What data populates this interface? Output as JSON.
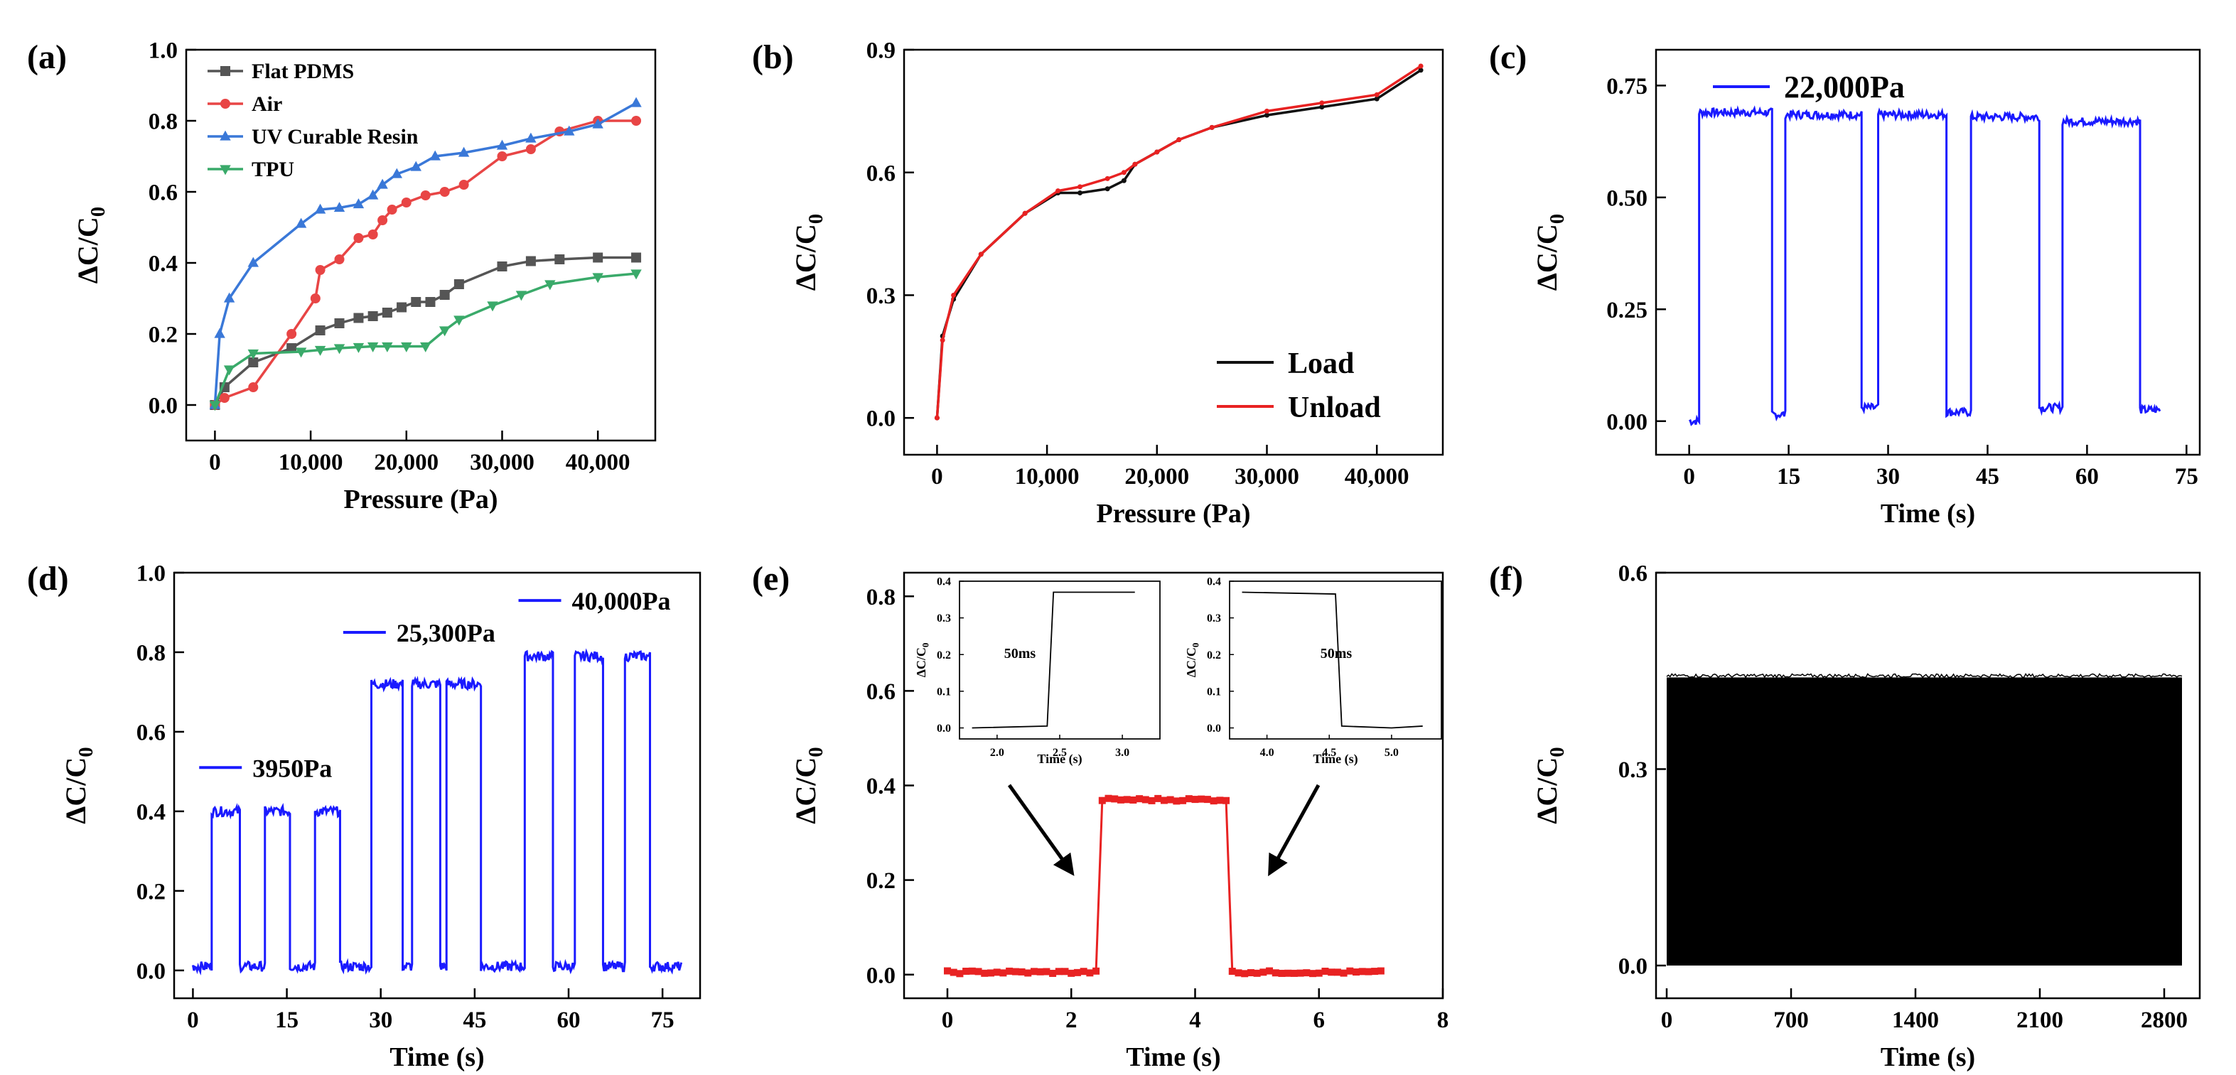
{
  "figure": {
    "panels": [
      {
        "label": "(a)",
        "xlabel": "Pressure (Pa)",
        "ylabel": "ΔC/C0"
      },
      {
        "label": "(b)",
        "xlabel": "Pressure (Pa)",
        "ylabel": "ΔC/C0"
      },
      {
        "label": "(c)",
        "xlabel": "Time (s)",
        "ylabel": "ΔC/C0"
      },
      {
        "label": "(d)",
        "xlabel": "Time (s)",
        "ylabel": "ΔC/C0"
      },
      {
        "label": "(e)",
        "xlabel": "Time (s)",
        "ylabel": "ΔC/C0"
      },
      {
        "label": "(f)",
        "xlabel": "Time (s)",
        "ylabel": "ΔC/C0"
      }
    ]
  },
  "chart_data": [
    {
      "id": "a",
      "type": "line",
      "xlabel": "Pressure (Pa)",
      "ylabel": "ΔC/C0",
      "xlim": [
        -3000,
        46000
      ],
      "ylim": [
        -0.1,
        1.0
      ],
      "xticks": [
        0,
        10000,
        20000,
        30000,
        40000
      ],
      "xticklabels": [
        "0",
        "10,000",
        "20,000",
        "30,000",
        "40,000"
      ],
      "yticks": [
        0.0,
        0.2,
        0.4,
        0.6,
        0.8,
        1.0
      ],
      "yticklabels": [
        "0.0",
        "0.2",
        "0.4",
        "0.6",
        "0.8",
        "1.0"
      ],
      "legend": "top-left",
      "series": [
        {
          "name": "Flat PDMS",
          "color": "#555555",
          "marker": "square",
          "x": [
            0,
            1000,
            4000,
            8000,
            11000,
            13000,
            15000,
            16500,
            18000,
            19500,
            21000,
            22500,
            24000,
            25500,
            30000,
            33000,
            36000,
            40000,
            44000
          ],
          "y": [
            0.0,
            0.05,
            0.12,
            0.16,
            0.21,
            0.23,
            0.245,
            0.25,
            0.26,
            0.275,
            0.29,
            0.29,
            0.31,
            0.34,
            0.39,
            0.405,
            0.41,
            0.415,
            0.415
          ]
        },
        {
          "name": "Air",
          "color": "#e84545",
          "marker": "circle",
          "x": [
            0,
            1000,
            4000,
            8000,
            10500,
            11000,
            13000,
            15000,
            16500,
            17500,
            18500,
            20000,
            22000,
            24000,
            26000,
            30000,
            33000,
            36000,
            40000,
            44000
          ],
          "y": [
            0.0,
            0.02,
            0.05,
            0.2,
            0.3,
            0.38,
            0.41,
            0.47,
            0.48,
            0.52,
            0.55,
            0.57,
            0.59,
            0.6,
            0.62,
            0.7,
            0.72,
            0.77,
            0.8,
            0.8
          ]
        },
        {
          "name": "UV Curable Resin",
          "color": "#3a78d8",
          "marker": "triangle-up",
          "x": [
            0,
            500,
            1500,
            4000,
            9000,
            11000,
            13000,
            15000,
            16500,
            17500,
            19000,
            21000,
            23000,
            26000,
            30000,
            33000,
            37000,
            40000,
            44000
          ],
          "y": [
            0.0,
            0.2,
            0.3,
            0.4,
            0.51,
            0.55,
            0.555,
            0.565,
            0.59,
            0.62,
            0.65,
            0.67,
            0.7,
            0.71,
            0.73,
            0.75,
            0.77,
            0.79,
            0.85
          ]
        },
        {
          "name": "TPU",
          "color": "#3aaa6a",
          "marker": "triangle-down",
          "x": [
            0,
            1500,
            4000,
            9000,
            11000,
            13000,
            15000,
            16500,
            18000,
            20000,
            22000,
            24000,
            25500,
            29000,
            32000,
            35000,
            40000,
            44000
          ],
          "y": [
            0.0,
            0.1,
            0.145,
            0.15,
            0.155,
            0.16,
            0.163,
            0.165,
            0.165,
            0.165,
            0.165,
            0.21,
            0.24,
            0.28,
            0.31,
            0.34,
            0.36,
            0.37
          ]
        }
      ]
    },
    {
      "id": "b",
      "type": "line",
      "xlabel": "Pressure (Pa)",
      "ylabel": "ΔC/C0",
      "xlim": [
        -3000,
        46000
      ],
      "ylim": [
        -0.09,
        0.9
      ],
      "xticks": [
        0,
        10000,
        20000,
        30000,
        40000
      ],
      "xticklabels": [
        "0",
        "10,000",
        "20,000",
        "30,000",
        "40,000"
      ],
      "yticks": [
        0.0,
        0.3,
        0.6,
        0.9
      ],
      "yticklabels": [
        "0.0",
        "0.3",
        "0.6",
        "0.9"
      ],
      "legend": "bottom-right",
      "series": [
        {
          "name": "Load",
          "color": "#111111",
          "x": [
            0,
            500,
            1500,
            4000,
            8000,
            11000,
            13000,
            15500,
            17000,
            18000,
            20000,
            22000,
            25000,
            30000,
            35000,
            40000,
            44000
          ],
          "y": [
            0.0,
            0.2,
            0.29,
            0.4,
            0.5,
            0.55,
            0.55,
            0.56,
            0.58,
            0.62,
            0.65,
            0.68,
            0.71,
            0.74,
            0.76,
            0.78,
            0.85
          ]
        },
        {
          "name": "Unload",
          "color": "#e82222",
          "x": [
            0,
            500,
            1500,
            4000,
            8000,
            11000,
            13000,
            15500,
            17000,
            18000,
            20000,
            22000,
            25000,
            30000,
            35000,
            40000,
            44000
          ],
          "y": [
            0.0,
            0.19,
            0.3,
            0.4,
            0.5,
            0.555,
            0.565,
            0.585,
            0.6,
            0.62,
            0.65,
            0.68,
            0.71,
            0.75,
            0.77,
            0.79,
            0.86
          ]
        }
      ]
    },
    {
      "id": "c",
      "type": "line",
      "xlabel": "Time (s)",
      "ylabel": "ΔC/C0",
      "xlim": [
        -5,
        77
      ],
      "ylim": [
        -0.075,
        0.83
      ],
      "xticks": [
        0,
        15,
        30,
        45,
        60,
        75
      ],
      "xticklabels": [
        "0",
        "15",
        "30",
        "45",
        "60",
        "75"
      ],
      "yticks": [
        0.0,
        0.25,
        0.5,
        0.75
      ],
      "yticklabels": [
        "0.00",
        "0.25",
        "0.50",
        "0.75"
      ],
      "legend": "top-left",
      "series": [
        {
          "name": "22,000Pa",
          "color": "#1a1aff",
          "pulses": [
            [
              1.5,
              12.5,
              0.69
            ],
            [
              14.5,
              26.0,
              0.685
            ],
            [
              28.5,
              38.8,
              0.685
            ],
            [
              42.5,
              52.8,
              0.68
            ],
            [
              56.3,
              68.0,
              0.67
            ]
          ],
          "baselines": [
            [
              0,
              1.5,
              0.0
            ],
            [
              12.5,
              14.5,
              0.015
            ],
            [
              26.0,
              28.5,
              0.03
            ],
            [
              38.8,
              42.5,
              0.02
            ],
            [
              52.8,
              56.3,
              0.03
            ],
            [
              68.0,
              71.0,
              0.025
            ]
          ]
        }
      ]
    },
    {
      "id": "d",
      "type": "line",
      "xlabel": "Time (s)",
      "ylabel": "ΔC/C0",
      "xlim": [
        -3,
        81
      ],
      "ylim": [
        -0.07,
        1.0
      ],
      "xticks": [
        0,
        15,
        30,
        45,
        60,
        75
      ],
      "xticklabels": [
        "0",
        "15",
        "30",
        "45",
        "60",
        "75"
      ],
      "yticks": [
        0.0,
        0.2,
        0.4,
        0.6,
        0.8,
        1.0
      ],
      "yticklabels": [
        "0.0",
        "0.2",
        "0.4",
        "0.6",
        "0.8",
        "1.0"
      ],
      "legend": "inline",
      "series": [
        {
          "name": "3950Pa",
          "color": "#1a1aff",
          "pulses": [
            [
              3,
              7.5,
              0.4
            ],
            [
              11.5,
              15.5,
              0.4
            ],
            [
              19.5,
              23.5,
              0.4
            ]
          ]
        },
        {
          "name": "25,300Pa",
          "color": "#1a1aff",
          "pulses": [
            [
              28.5,
              33.5,
              0.72
            ],
            [
              35,
              39.5,
              0.72
            ],
            [
              40.5,
              46,
              0.72
            ]
          ]
        },
        {
          "name": "40,000Pa",
          "color": "#1a1aff",
          "pulses": [
            [
              53,
              57.5,
              0.79
            ],
            [
              61,
              65.5,
              0.79
            ],
            [
              69,
              73,
              0.79
            ]
          ]
        }
      ]
    },
    {
      "id": "e",
      "type": "line",
      "xlabel": "Time (s)",
      "ylabel": "ΔC/C0",
      "xlim": [
        -0.7,
        8
      ],
      "ylim": [
        -0.05,
        0.85
      ],
      "xticks": [
        0,
        2,
        4,
        6,
        8
      ],
      "xticklabels": [
        "0",
        "2",
        "4",
        "6",
        "8"
      ],
      "yticks": [
        0.0,
        0.2,
        0.4,
        0.6,
        0.8
      ],
      "yticklabels": [
        "0.0",
        "0.2",
        "0.4",
        "0.6",
        "0.8"
      ],
      "legend": "none",
      "series": [
        {
          "name": "",
          "color": "#e82222",
          "marker": "square",
          "x_start": 0,
          "x_end": 7.05,
          "step": 0.1,
          "rise": 2.45,
          "fall": 4.6,
          "low": 0.005,
          "high": 0.37
        }
      ],
      "insets": [
        {
          "annotation": "50ms",
          "xlim": [
            1.7,
            3.3
          ],
          "ylim": [
            -0.03,
            0.4
          ],
          "xticks": [
            2.0,
            2.5,
            3.0
          ],
          "xticklabels": [
            "2.0",
            "2.5",
            "3.0"
          ],
          "yticks": [
            0.0,
            0.1,
            0.2,
            0.3,
            0.4
          ],
          "yticklabels": [
            "0.0",
            "0.1",
            "0.2",
            "0.3",
            "0.4"
          ],
          "xlabel": "Time (s)",
          "ylabel": "ΔC/C0",
          "x": [
            1.8,
            2.4,
            2.45,
            3.1
          ],
          "y": [
            0.0,
            0.005,
            0.37,
            0.37
          ]
        },
        {
          "annotation": "50ms",
          "xlim": [
            3.7,
            5.4
          ],
          "ylim": [
            -0.03,
            0.4
          ],
          "xticks": [
            4.0,
            4.5,
            5.0
          ],
          "xticklabels": [
            "4.0",
            "4.5",
            "5.0"
          ],
          "yticks": [
            0.0,
            0.1,
            0.2,
            0.3,
            0.4
          ],
          "yticklabels": [
            "0.0",
            "0.1",
            "0.2",
            "0.3",
            "0.4"
          ],
          "xlabel": "Time (s)",
          "ylabel": "ΔC/C0",
          "x": [
            3.8,
            4.55,
            4.6,
            5.0,
            5.25
          ],
          "y": [
            0.37,
            0.365,
            0.005,
            0.0,
            0.005
          ]
        }
      ]
    },
    {
      "id": "f",
      "type": "line",
      "xlabel": "Time (s)",
      "ylabel": "ΔC/C0",
      "xlim": [
        -60,
        3000
      ],
      "ylim": [
        -0.05,
        0.6
      ],
      "xticks": [
        0,
        700,
        1400,
        2100,
        2800
      ],
      "xticklabels": [
        "0",
        "700",
        "1400",
        "2100",
        "2800"
      ],
      "yticks": [
        0.0,
        0.3,
        0.6
      ],
      "yticklabels": [
        "0.0",
        "0.3",
        "0.6"
      ],
      "legend": "none",
      "series": [
        {
          "name": "",
          "color": "#000000",
          "band": [
            0,
            2900,
            0.0,
            0.44
          ]
        }
      ]
    }
  ]
}
